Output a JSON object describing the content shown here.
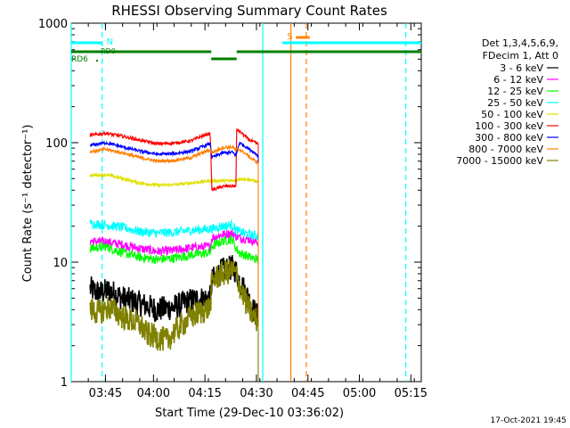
{
  "chart_data": {
    "type": "line",
    "title": "RHESSI Observing Summary Count Rates",
    "xlabel": "Start Time (29-Dec-10 03:36:02)",
    "ylabel": "Count Rate (s⁻¹ detector⁻¹)",
    "x_unit": "minutes after 03:36:02",
    "xlim": [
      0,
      102
    ],
    "ylim": [
      1,
      1000
    ],
    "yscale": "log",
    "xticks": [
      {
        "x": 9.97,
        "label": "03:45"
      },
      {
        "x": 23.97,
        "label": "04:00"
      },
      {
        "x": 38.97,
        "label": "04:15"
      },
      {
        "x": 53.97,
        "label": "04:30"
      },
      {
        "x": 68.97,
        "label": "04:45"
      },
      {
        "x": 83.97,
        "label": "05:00"
      },
      {
        "x": 98.97,
        "label": "05:15"
      }
    ],
    "yticks": [
      {
        "y": 1,
        "label": "1"
      },
      {
        "y": 10,
        "label": "10"
      },
      {
        "y": 100,
        "label": "100"
      },
      {
        "y": 1000,
        "label": "1000"
      }
    ],
    "legend": {
      "placement": "right",
      "header": [
        "Det 1,3,4,5,6,9,",
        "FDecim 1, Att 0"
      ]
    },
    "segments": [
      [
        4.5,
        40.8
      ],
      [
        40.8,
        48.2
      ],
      [
        48.2,
        55.2
      ]
    ],
    "series": [
      {
        "name": "3 - 6 keV",
        "color": "#000000",
        "values": [
          [
            5.5,
            6.0
          ],
          [
            8,
            5.5
          ],
          [
            11,
            5.8
          ],
          [
            15,
            5.0
          ],
          [
            20,
            4.5
          ],
          [
            25,
            4.0
          ],
          [
            30,
            4.2
          ],
          [
            35,
            4.8
          ],
          [
            40.5,
            5.0
          ],
          [
            41,
            7.0
          ],
          [
            44,
            8.5
          ],
          [
            47,
            9.0
          ],
          [
            48,
            8.5
          ],
          [
            49,
            7.0
          ],
          [
            51,
            5.5
          ],
          [
            53,
            4.0
          ],
          [
            54.5,
            3.5
          ]
        ]
      },
      {
        "name": "6 - 12 keV",
        "color": "#ff00ff",
        "values": [
          [
            5.5,
            15.0
          ],
          [
            10,
            14.8
          ],
          [
            15,
            14.0
          ],
          [
            20,
            13.0
          ],
          [
            25,
            12.3
          ],
          [
            30,
            12.5
          ],
          [
            35,
            13.2
          ],
          [
            40.5,
            13.5
          ],
          [
            41,
            16.0
          ],
          [
            44,
            17.0
          ],
          [
            47,
            17.5
          ],
          [
            48,
            16.5
          ],
          [
            49,
            16.0
          ],
          [
            52,
            15.5
          ],
          [
            54.5,
            14.5
          ]
        ]
      },
      {
        "name": "12 - 25 keV",
        "color": "#00ff00",
        "values": [
          [
            5.5,
            13.0
          ],
          [
            10,
            13.5
          ],
          [
            15,
            12.0
          ],
          [
            20,
            11.0
          ],
          [
            25,
            10.5
          ],
          [
            30,
            10.8
          ],
          [
            35,
            11.5
          ],
          [
            40.5,
            12.0
          ],
          [
            41,
            13.5
          ],
          [
            44,
            15.0
          ],
          [
            47,
            15.5
          ],
          [
            48,
            13.0
          ],
          [
            49,
            12.0
          ],
          [
            52,
            11.0
          ],
          [
            54.5,
            10.5
          ]
        ]
      },
      {
        "name": "25 - 50 keV",
        "color": "#00ffff",
        "values": [
          [
            5.5,
            21.0
          ],
          [
            10,
            20.5
          ],
          [
            15,
            19.5
          ],
          [
            20,
            18.0
          ],
          [
            25,
            17.5
          ],
          [
            30,
            17.8
          ],
          [
            35,
            18.5
          ],
          [
            40.5,
            19.0
          ],
          [
            41,
            19.0
          ],
          [
            44,
            20.0
          ],
          [
            47,
            20.5
          ],
          [
            48,
            18.5
          ],
          [
            49,
            18.0
          ],
          [
            52,
            17.0
          ],
          [
            54.5,
            16.5
          ]
        ]
      },
      {
        "name": "50 - 100 keV",
        "color": "#e0e000",
        "values": [
          [
            5.5,
            53.0
          ],
          [
            10,
            54.0
          ],
          [
            15,
            50.0
          ],
          [
            20,
            46.0
          ],
          [
            25,
            44.0
          ],
          [
            30,
            44.5
          ],
          [
            35,
            46.0
          ],
          [
            40.5,
            48.0
          ],
          [
            48.2,
            48.0
          ],
          [
            49,
            50.0
          ],
          [
            52,
            49.0
          ],
          [
            54.5,
            47.0
          ]
        ]
      },
      {
        "name": "100 - 300 keV",
        "color": "#ff0000",
        "values": [
          [
            5.5,
            115.0
          ],
          [
            10,
            120.0
          ],
          [
            15,
            113.0
          ],
          [
            20,
            105.0
          ],
          [
            25,
            98.0
          ],
          [
            30,
            99.0
          ],
          [
            35,
            104.0
          ],
          [
            38,
            113.0
          ],
          [
            40.5,
            120.0
          ],
          [
            41,
            40.0
          ],
          [
            44,
            43.0
          ],
          [
            47,
            43.5
          ],
          [
            48,
            43.0
          ],
          [
            48.2,
            130.0
          ],
          [
            50,
            118.0
          ],
          [
            52,
            105.0
          ],
          [
            54.5,
            97.0
          ]
        ]
      },
      {
        "name": "300 - 800 keV",
        "color": "#0000ff",
        "values": [
          [
            5.5,
            95.0
          ],
          [
            10,
            100.0
          ],
          [
            15,
            92.0
          ],
          [
            20,
            85.0
          ],
          [
            25,
            80.0
          ],
          [
            30,
            81.0
          ],
          [
            35,
            85.0
          ],
          [
            38,
            92.0
          ],
          [
            40.5,
            98.0
          ],
          [
            41,
            75.0
          ],
          [
            44,
            82.0
          ],
          [
            47,
            83.0
          ],
          [
            48,
            78.0
          ],
          [
            49,
            100.0
          ],
          [
            51,
            92.0
          ],
          [
            53,
            84.0
          ],
          [
            54.5,
            78.0
          ]
        ]
      },
      {
        "name": "800 - 7000 keV",
        "color": "#ff8000",
        "values": [
          [
            5.5,
            84.0
          ],
          [
            10,
            88.0
          ],
          [
            15,
            82.0
          ],
          [
            20,
            75.0
          ],
          [
            25,
            70.0
          ],
          [
            30,
            71.0
          ],
          [
            35,
            75.0
          ],
          [
            38,
            82.0
          ],
          [
            40.5,
            87.0
          ],
          [
            41,
            82.0
          ],
          [
            44,
            91.0
          ],
          [
            47,
            92.0
          ],
          [
            48,
            86.0
          ],
          [
            49,
            88.0
          ],
          [
            51,
            80.0
          ],
          [
            53,
            72.0
          ],
          [
            54.5,
            68.0
          ]
        ]
      },
      {
        "name": "7000 - 15000 keV",
        "color": "#808000",
        "values": [
          [
            5.5,
            4.0
          ],
          [
            8,
            3.8
          ],
          [
            11,
            4.2
          ],
          [
            15,
            3.5
          ],
          [
            20,
            3.0
          ],
          [
            22,
            2.5
          ],
          [
            28,
            2.2
          ],
          [
            30,
            2.6
          ],
          [
            35,
            3.5
          ],
          [
            40.5,
            4.2
          ],
          [
            41,
            7.0
          ],
          [
            44,
            8.0
          ],
          [
            47,
            8.5
          ],
          [
            48,
            8.0
          ],
          [
            49,
            6.5
          ],
          [
            51,
            4.5
          ],
          [
            53,
            3.5
          ],
          [
            54.5,
            3.2
          ]
        ]
      }
    ],
    "flags": [
      {
        "label": "N",
        "color": "#00ffff",
        "start": 0,
        "end": 9.0
      },
      {
        "label": "",
        "color": "#00ffff",
        "start": 61.5,
        "end": 102
      },
      {
        "label": "S",
        "color": "#ff8000",
        "start": 65.5,
        "end": 69.5
      }
    ],
    "flag_labels": [
      "RD0",
      "RD6"
    ],
    "attenuator": [
      [
        0,
        40.8,
        "high"
      ],
      [
        40.8,
        48.2,
        "low"
      ],
      [
        48.2,
        102,
        "high"
      ]
    ],
    "vlines": [
      {
        "x": 0.0,
        "color": "#00ffff",
        "style": "solid"
      },
      {
        "x": 9.0,
        "color": "#00ffff",
        "style": "dashed"
      },
      {
        "x": 55.8,
        "color": "#00ffff",
        "style": "solid"
      },
      {
        "x": 64.0,
        "color": "#ff8000",
        "style": "solid"
      },
      {
        "x": 68.5,
        "color": "#ff8000",
        "style": "dashed"
      },
      {
        "x": 97.5,
        "color": "#00ffff",
        "style": "dashed"
      }
    ],
    "grid": false
  },
  "footer": {
    "timestamp": "17-Oct-2021 19:45"
  }
}
